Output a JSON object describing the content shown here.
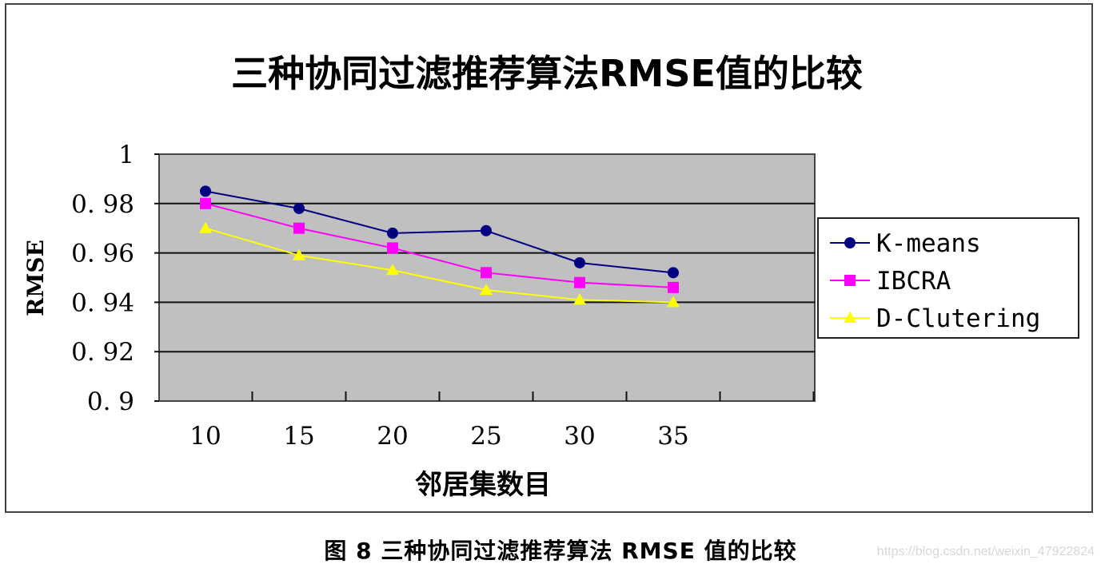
{
  "caption": "图 8  三种协同过滤推荐算法 RMSE 值的比较",
  "watermark": "https://blog.csdn.net/weixin_47922824",
  "colors": {
    "plot_bg": "#c0c0c0",
    "k_means": "#000080",
    "ibcra": "#ff00ff",
    "d_clutering": "#ffff00"
  },
  "chart_data": {
    "type": "line",
    "title": "三种协同过滤推荐算法RMSE值的比较",
    "xlabel": "邻居集数目",
    "ylabel": "RMSE",
    "categories": [
      "10",
      "15",
      "20",
      "25",
      "30",
      "35"
    ],
    "yticks": [
      "0.9",
      "0.92",
      "0.94",
      "0.96",
      "0.98",
      "1"
    ],
    "ylim": [
      0.9,
      1.0
    ],
    "grid": true,
    "legend_position": "right",
    "series": [
      {
        "name": "K-means",
        "marker": "circle",
        "color": "#000080",
        "values": [
          0.985,
          0.978,
          0.968,
          0.969,
          0.956,
          0.952
        ]
      },
      {
        "name": "IBCRA",
        "marker": "square",
        "color": "#ff00ff",
        "values": [
          0.98,
          0.97,
          0.962,
          0.952,
          0.948,
          0.946
        ]
      },
      {
        "name": "D-Clutering",
        "marker": "triangle",
        "color": "#ffff00",
        "values": [
          0.97,
          0.959,
          0.953,
          0.945,
          0.941,
          0.94
        ]
      }
    ]
  }
}
